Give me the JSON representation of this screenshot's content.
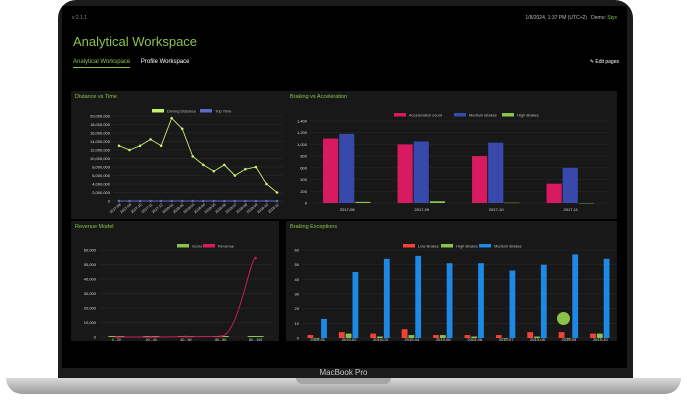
{
  "app": {
    "version": "v 2.1.1",
    "timestamp": "1/8/2024, 1:37 PM (UTC+2)",
    "user_prefix": "Demo",
    "user_name": "Styx",
    "title": "Analytical Workspace",
    "tabs": [
      {
        "label": "Analytical Workspace",
        "active": true
      },
      {
        "label": "Profile Workspace",
        "active": false
      }
    ],
    "edit_pages": "Edit pages",
    "device_label": "MacBook Pro"
  },
  "colors": {
    "accent": "#8bc34a",
    "crimson": "#d81b60",
    "navy": "#3949ab",
    "sky": "#1e88e5",
    "red": "#f44336"
  },
  "chart_data": [
    {
      "type": "line",
      "title": "Distance vs Time",
      "x": [
        "2017-08",
        "2017-09",
        "2017-10",
        "2017-11",
        "2017-12",
        "2018-01",
        "2018-02",
        "2018-03",
        "2018-04",
        "2018-05",
        "2018-06",
        "2018-07",
        "2018-08",
        "2018-09",
        "2018-10",
        "2018-11"
      ],
      "series": [
        {
          "name": "Driving Distance",
          "color": "#c6ef6e",
          "values": [
            13000000,
            12000000,
            13000000,
            14500000,
            13000000,
            19500000,
            17000000,
            10500000,
            8500000,
            7000000,
            8500000,
            6000000,
            7500000,
            8000000,
            4000000,
            2000000
          ]
        },
        {
          "name": "Trip Time",
          "color": "#5c6bc0",
          "values": [
            0,
            0,
            0,
            0,
            0,
            0,
            0,
            0,
            0,
            0,
            0,
            0,
            0,
            0,
            0,
            0
          ]
        }
      ],
      "yticks": [
        "0",
        "2,000,000",
        "4,000,000",
        "6,000,000",
        "8,000,000",
        "10,000,000",
        "12,000,000",
        "14,000,000",
        "16,000,000",
        "18,000,000",
        "20,000,000"
      ],
      "ylim": [
        0,
        20000000
      ]
    },
    {
      "type": "bar",
      "title": "Braking vs Acceleration",
      "categories": [
        "2017-08",
        "2017-09",
        "2017-10",
        "2017-11"
      ],
      "series": [
        {
          "name": "Acceleration count",
          "color": "#d81b60",
          "values": [
            1100,
            1000,
            800,
            330
          ]
        },
        {
          "name": "Medium Brakes",
          "color": "#3949ab",
          "values": [
            1180,
            1050,
            1030,
            600
          ]
        },
        {
          "name": "High Brakes",
          "color": "#8bc34a",
          "values": [
            20,
            30,
            5,
            0
          ]
        }
      ],
      "yticks": [
        "0",
        "200",
        "400",
        "600",
        "800",
        "1,000",
        "1,200",
        "1,400"
      ],
      "ylim": [
        0,
        1400
      ]
    },
    {
      "type": "line",
      "title": "Revenue Model",
      "categories": [
        "0 - 20",
        "20 - 40",
        "40 - 60",
        "60 - 80",
        "80 - 100"
      ],
      "series": [
        {
          "name": "Score",
          "color": "#8bc34a",
          "values": [
            0,
            0,
            0,
            0,
            0
          ]
        },
        {
          "name": "Revenue",
          "color": "#d81b60",
          "values": [
            0,
            0,
            200,
            500,
            59000
          ]
        }
      ],
      "yticks": [
        "0",
        "10,000",
        "20,000",
        "30,000",
        "40,000",
        "50,000",
        "60,000"
      ],
      "ylim": [
        0,
        65000
      ]
    },
    {
      "type": "bar",
      "title": "Braking Exceptions",
      "categories": [
        "2019-01",
        "2019-02",
        "2019-03",
        "2019-04",
        "2019-05",
        "2019-06",
        "2019-07",
        "2019-08",
        "2019-09",
        "2019-10"
      ],
      "series": [
        {
          "name": "Low Brakes",
          "color": "#f44336",
          "values": [
            2,
            4,
            3,
            6,
            2,
            2,
            2,
            4,
            4,
            3
          ]
        },
        {
          "name": "High Brakes",
          "color": "#8bc34a",
          "values": [
            0,
            3,
            1,
            2,
            2,
            1,
            0,
            1,
            0,
            3
          ]
        },
        {
          "name": "Medium Brakes",
          "color": "#1e88e5",
          "values": [
            13,
            45,
            54,
            56,
            51,
            51,
            46,
            50,
            57,
            54
          ]
        }
      ],
      "yticks": [
        "0",
        "10",
        "20",
        "30",
        "40",
        "50",
        "60"
      ],
      "ylim": [
        0,
        60
      ]
    }
  ]
}
